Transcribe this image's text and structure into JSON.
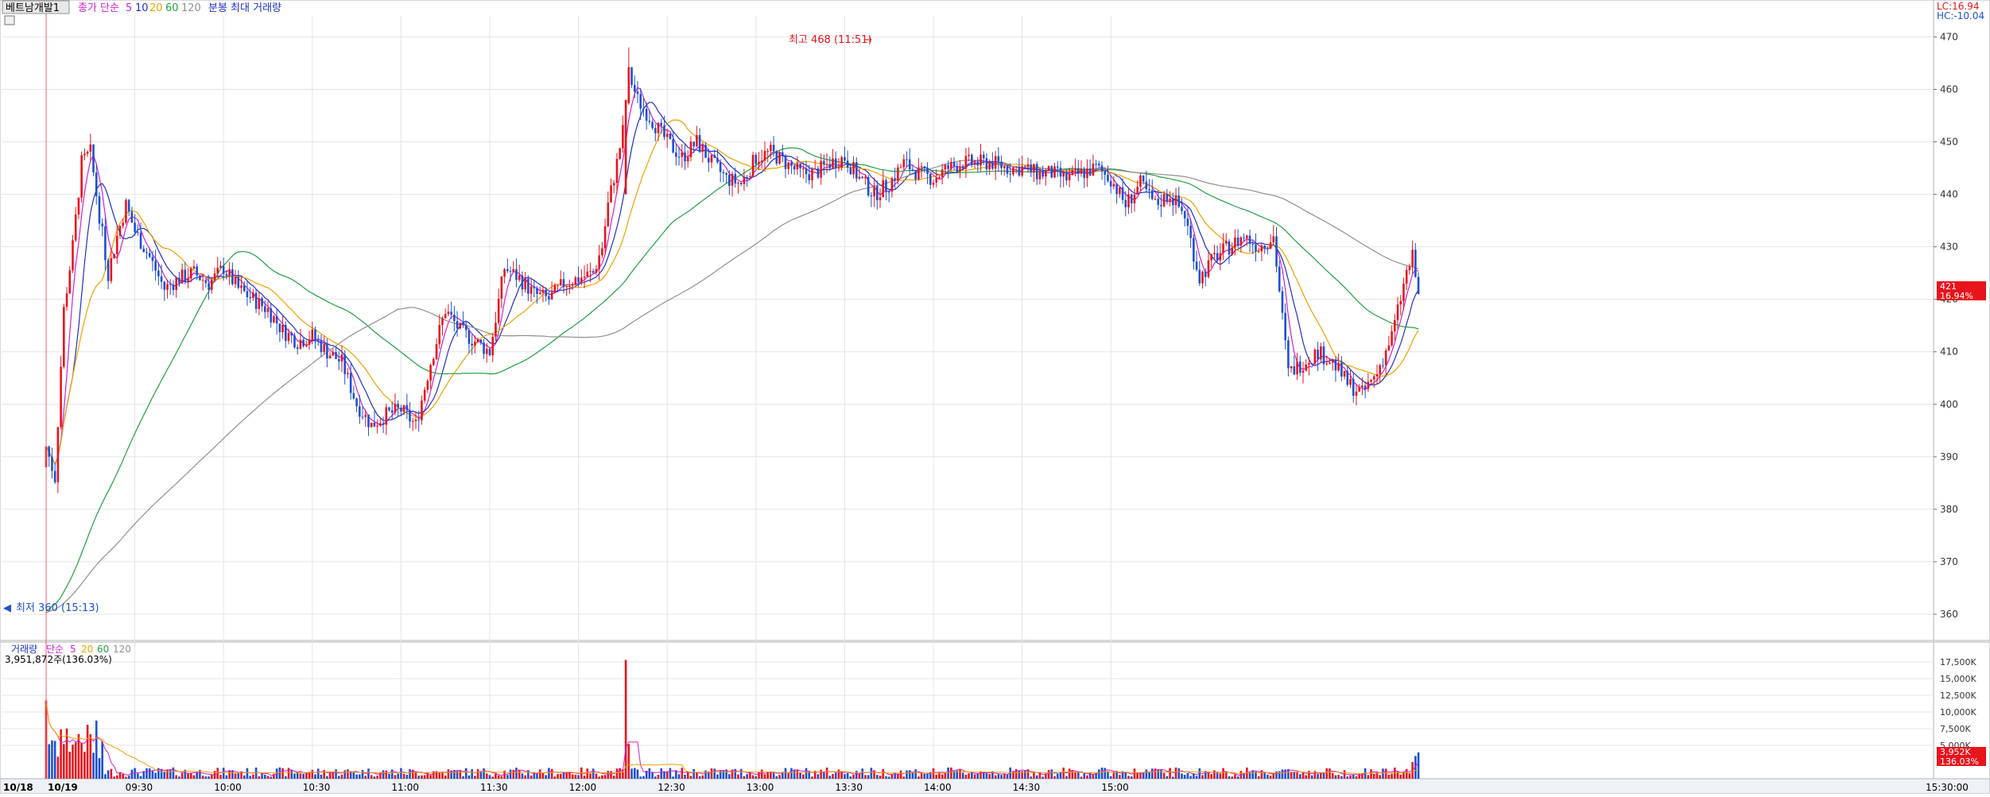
{
  "header": {
    "stock_name": "베트남개발1",
    "ma_label": "종가 단순",
    "ma_periods": [
      "5",
      "10",
      "20",
      "60",
      "120"
    ],
    "ma_colors": [
      "#d020d0",
      "#2030c0",
      "#f0a000",
      "#20a040",
      "#909090"
    ],
    "extra_label": "분봉 최대 거래량",
    "lc": "LC:16.94",
    "hc": "HC:-10.04"
  },
  "volume_header": {
    "label": "거래량",
    "ma_label": "단순",
    "ma_periods": [
      "5",
      "20",
      "60",
      "120"
    ],
    "total": "3,951,872주(136.03%)"
  },
  "annotations": {
    "high": "최고 468 (11:51)",
    "low": "최저 360 (15:13)"
  },
  "price_badge": {
    "value": "421",
    "pct": "16.94%"
  },
  "volume_badge": {
    "value": "3,952K",
    "pct": "136.03%"
  },
  "colors": {
    "up": "#e8141c",
    "down": "#1e50d0",
    "grid": "#e4e4e4"
  },
  "chart_data": {
    "type": "candlestick",
    "time_labels": [
      "10/18",
      "10/19",
      "09:30",
      "10:00",
      "10:30",
      "11:00",
      "11:30",
      "12:00",
      "12:30",
      "13:00",
      "13:30",
      "14:00",
      "14:30",
      "15:00",
      "15:30:00"
    ],
    "price_ticks": [
      470,
      460,
      450,
      440,
      430,
      420,
      410,
      400,
      390,
      380,
      370,
      360
    ],
    "price_range": [
      355,
      474
    ],
    "volume_ticks": [
      "17,500K",
      "15,000K",
      "12,500K",
      "10,000K",
      "7,500K",
      "5,000K"
    ],
    "volume_range": [
      0,
      20000
    ],
    "session_open": "10/19 09:00",
    "high": {
      "value": 468,
      "time": "11:51"
    },
    "low": {
      "value": 360,
      "time": "15:13"
    },
    "last_close": 421,
    "change_pct": 16.94,
    "volume_total": 3951872,
    "volume_pct": 136.03,
    "price_path": [
      [
        0,
        392
      ],
      [
        3,
        386
      ],
      [
        6,
        418
      ],
      [
        9,
        430
      ],
      [
        12,
        446
      ],
      [
        15,
        448
      ],
      [
        18,
        436
      ],
      [
        21,
        425
      ],
      [
        24,
        432
      ],
      [
        27,
        438
      ],
      [
        30,
        433
      ],
      [
        35,
        428
      ],
      [
        40,
        422
      ],
      [
        45,
        424
      ],
      [
        50,
        425
      ],
      [
        55,
        423
      ],
      [
        60,
        426
      ],
      [
        65,
        422
      ],
      [
        70,
        420
      ],
      [
        75,
        418
      ],
      [
        80,
        414
      ],
      [
        85,
        412
      ],
      [
        90,
        413
      ],
      [
        95,
        410
      ],
      [
        100,
        408
      ],
      [
        105,
        400
      ],
      [
        110,
        396
      ],
      [
        115,
        398
      ],
      [
        120,
        399
      ],
      [
        125,
        396
      ],
      [
        130,
        408
      ],
      [
        135,
        418
      ],
      [
        140,
        414
      ],
      [
        145,
        412
      ],
      [
        150,
        410
      ],
      [
        155,
        426
      ],
      [
        160,
        424
      ],
      [
        165,
        421
      ],
      [
        170,
        420
      ],
      [
        175,
        423
      ],
      [
        180,
        424
      ],
      [
        185,
        425
      ],
      [
        188,
        430
      ],
      [
        190,
        438
      ],
      [
        193,
        446
      ],
      [
        195,
        452
      ],
      [
        197,
        463
      ],
      [
        200,
        458
      ],
      [
        205,
        454
      ],
      [
        210,
        450
      ],
      [
        215,
        447
      ],
      [
        220,
        450
      ],
      [
        225,
        446
      ],
      [
        230,
        443
      ],
      [
        235,
        442
      ],
      [
        240,
        447
      ],
      [
        245,
        448
      ],
      [
        250,
        446
      ],
      [
        255,
        444
      ],
      [
        260,
        444
      ],
      [
        265,
        446
      ],
      [
        270,
        447
      ],
      [
        275,
        443
      ],
      [
        280,
        440
      ],
      [
        285,
        442
      ],
      [
        290,
        446
      ],
      [
        295,
        444
      ],
      [
        300,
        443
      ],
      [
        305,
        445
      ],
      [
        310,
        446
      ],
      [
        315,
        446
      ],
      [
        320,
        446
      ],
      [
        325,
        445
      ],
      [
        330,
        445
      ],
      [
        335,
        444
      ],
      [
        340,
        444
      ],
      [
        345,
        443
      ],
      [
        350,
        444
      ],
      [
        355,
        445
      ],
      [
        360,
        443
      ],
      [
        365,
        438
      ],
      [
        370,
        442
      ],
      [
        375,
        438
      ],
      [
        380,
        440
      ],
      [
        385,
        436
      ],
      [
        390,
        424
      ],
      [
        395,
        428
      ],
      [
        400,
        430
      ],
      [
        405,
        432
      ],
      [
        410,
        430
      ],
      [
        415,
        432
      ],
      [
        420,
        406
      ],
      [
        425,
        408
      ],
      [
        430,
        410
      ],
      [
        435,
        408
      ],
      [
        440,
        404
      ],
      [
        445,
        402
      ],
      [
        450,
        406
      ],
      [
        455,
        413
      ],
      [
        460,
        425
      ],
      [
        462,
        428
      ],
      [
        464,
        421
      ]
    ]
  }
}
